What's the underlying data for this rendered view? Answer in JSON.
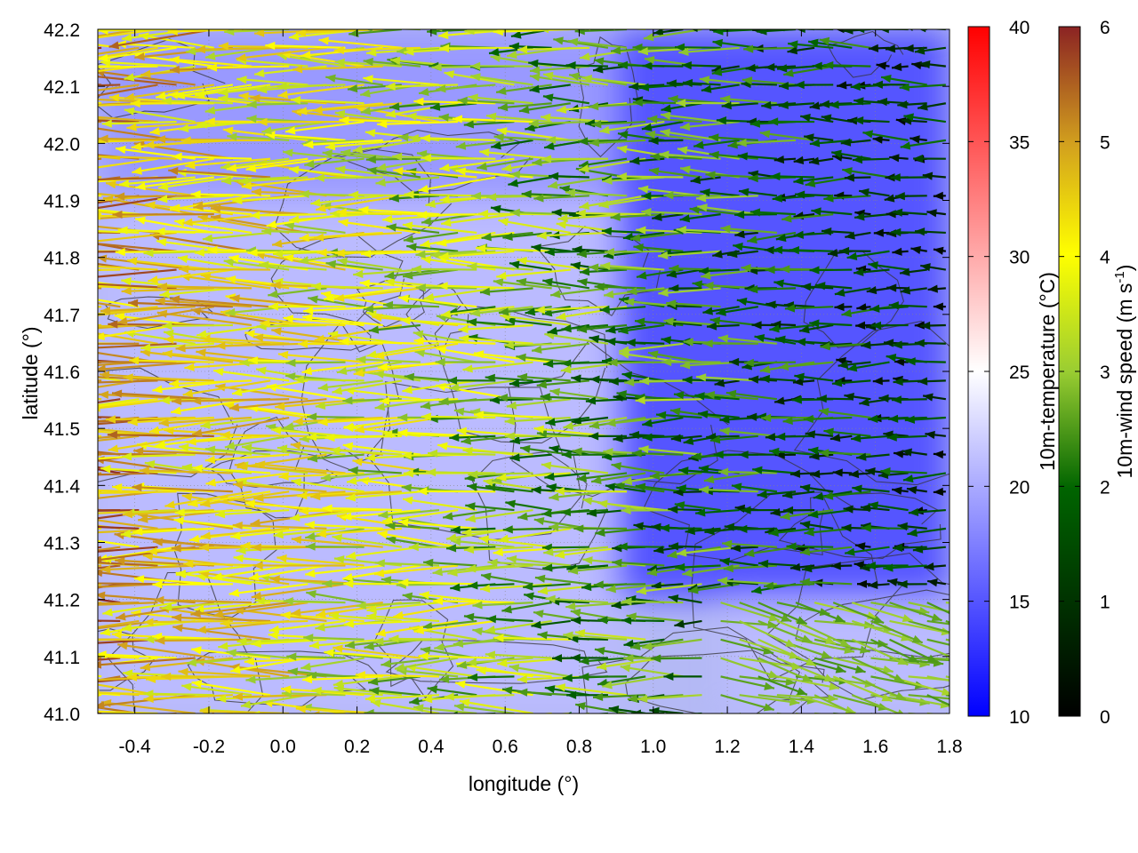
{
  "chart_data": {
    "type": "vector-field",
    "xlabel": "longitude (°)",
    "ylabel": "latitude (°)",
    "xlim": [
      -0.5,
      1.8
    ],
    "ylim": [
      41.0,
      42.2
    ],
    "xticks": [
      "-0.4",
      "-0.2",
      "0.0",
      "0.2",
      "0.4",
      "0.6",
      "0.8",
      "1.0",
      "1.2",
      "1.4",
      "1.6",
      "1.8"
    ],
    "yticks": [
      "41.0",
      "41.1",
      "41.2",
      "41.3",
      "41.4",
      "41.5",
      "41.6",
      "41.7",
      "41.8",
      "41.9",
      "42.0",
      "42.1",
      "42.2"
    ],
    "grid": true,
    "temperature_colorbar": {
      "label": "10m-temperature (°C)",
      "range": [
        10,
        40
      ],
      "ticks": [
        "10",
        "15",
        "20",
        "25",
        "30",
        "35",
        "40"
      ],
      "colors": [
        "#0000ff",
        "#ffffff",
        "#ff0000"
      ]
    },
    "wind_colorbar": {
      "label_main": "10m-wind speed (m s",
      "label_sup": "-1",
      "label_end": ")",
      "range": [
        0,
        6
      ],
      "ticks": [
        "0",
        "1",
        "2",
        "3",
        "4",
        "5",
        "6"
      ],
      "colors": [
        "#000000",
        "#006400",
        "#9acd32",
        "#ffff00",
        "#d2a01e",
        "#8b2323"
      ]
    },
    "background_temperature": {
      "description_regions": [
        {
          "lon": [
            -0.5,
            0.9
          ],
          "lat": [
            41.0,
            41.9
          ],
          "temp": 21
        },
        {
          "lon": [
            -0.5,
            0.9
          ],
          "lat": [
            41.9,
            42.2
          ],
          "temp": 19
        },
        {
          "lon": [
            0.9,
            1.8
          ],
          "lat": [
            41.2,
            42.2
          ],
          "temp": 15
        },
        {
          "lon": [
            1.2,
            1.8
          ],
          "lat": [
            41.0,
            41.2
          ],
          "temp": 21
        }
      ]
    },
    "wind_field": {
      "lon_range": [
        -0.49,
        1.79
      ],
      "lat_range": [
        41.0,
        42.2
      ],
      "nx": 46,
      "ny": 38,
      "west_speed": 5.0,
      "east_speed": 1.0,
      "direction": "from east (arrows point west), turning north-east in south-east corner"
    }
  }
}
